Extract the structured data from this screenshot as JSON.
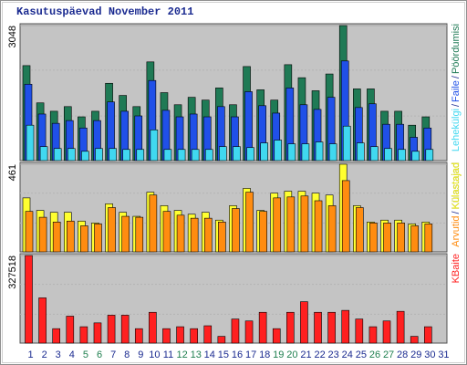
{
  "chart_data": {
    "type": "bar",
    "title": "Kasutuspäevad November 2011",
    "categories": [
      "1",
      "2",
      "3",
      "4",
      "5",
      "6",
      "7",
      "8",
      "9",
      "10",
      "11",
      "12",
      "13",
      "14",
      "15",
      "16",
      "17",
      "18",
      "19",
      "20",
      "21",
      "22",
      "23",
      "24",
      "25",
      "26",
      "27",
      "28",
      "29",
      "30",
      "31"
    ],
    "category_colors": [
      "#1a2a90",
      "#1a2a90",
      "#1a2a90",
      "#1a2a90",
      "#208050",
      "#208050",
      "#1a2a90",
      "#1a2a90",
      "#1a2a90",
      "#1a2a90",
      "#1a2a90",
      "#208050",
      "#208050",
      "#1a2a90",
      "#1a2a90",
      "#1a2a90",
      "#1a2a90",
      "#1a2a90",
      "#208050",
      "#208050",
      "#1a2a90",
      "#1a2a90",
      "#1a2a90",
      "#1a2a90",
      "#1a2a90",
      "#208050",
      "#208050",
      "#1a2a90",
      "#1a2a90",
      "#1a2a90",
      "#1a2a90"
    ],
    "legend_separator": "/",
    "grid": true,
    "panels": [
      {
        "ylim": [
          0,
          3048
        ],
        "yticks": [
          3048
        ],
        "series": [
          {
            "name": "Pöördumisi",
            "color": "#1f7a55",
            "values": [
              2144,
              1303,
              1114,
              1219,
              988,
              1114,
              1745,
              1471,
              1219,
              2228,
              1534,
              1261,
              1429,
              1366,
              1640,
              1261,
              2123,
              1598,
              1366,
              2165,
              1871,
              1577,
              1955,
              3048,
              1619,
              1619,
              1114,
              1114,
              799,
              988,
              null
            ]
          },
          {
            "name": "Faile",
            "color": "#2050e8",
            "values": [
              1724,
              1051,
              841,
              904,
              736,
              904,
              1324,
              1114,
              1009,
              1808,
              1135,
              988,
              1051,
              988,
              1219,
              988,
              1556,
              1240,
              1072,
              1640,
              1261,
              1156,
              1429,
              2249,
              1198,
              1282,
              820,
              820,
              526,
              736,
              null
            ]
          },
          {
            "name": "Lehekülgi",
            "color": "#40d8f0",
            "values": [
              799,
              315,
              273,
              273,
              210,
              273,
              273,
              252,
              252,
              694,
              252,
              252,
              252,
              252,
              315,
              315,
              294,
              399,
              462,
              378,
              378,
              420,
              378,
              778,
              399,
              315,
              273,
              252,
              210,
              252,
              null
            ]
          }
        ]
      },
      {
        "ylim": [
          0,
          461
        ],
        "yticks": [
          461
        ],
        "series": [
          {
            "name": "Külastajad",
            "color": "#ffff30",
            "values": [
              284,
              218,
              208,
              208,
              162,
              152,
              253,
              208,
              187,
              314,
              243,
              218,
              198,
              208,
              167,
              243,
              334,
              218,
              309,
              319,
              319,
              309,
              299,
              461,
              243,
              157,
              167,
              167,
              147,
              157,
              null
            ]
          },
          {
            "name": "Arvutid",
            "color": "#ff8c10",
            "values": [
              213,
              182,
              157,
              162,
              137,
              147,
              233,
              187,
              182,
              299,
              213,
              193,
              177,
              177,
              157,
              228,
              314,
              213,
              284,
              289,
              294,
              269,
              243,
              375,
              233,
              152,
              152,
              152,
              137,
              147,
              null
            ]
          }
        ]
      },
      {
        "ylim": [
          0,
          327518
        ],
        "yticks": [
          327518
        ],
        "series": [
          {
            "name": "KBaite",
            "color": "#ff2020",
            "values": [
              327518,
              169153,
              53985,
              100772,
              61183,
              75579,
              104371,
              104371,
              53985,
              115168,
              53985,
              61183,
              53985,
              64782,
              25193,
              89976,
              82778,
              115168,
              53985,
              115168,
              154757,
              115168,
              115168,
              122366,
              89976,
              61183,
              82778,
              118767,
              25193,
              61183,
              null
            ]
          }
        ]
      }
    ]
  }
}
